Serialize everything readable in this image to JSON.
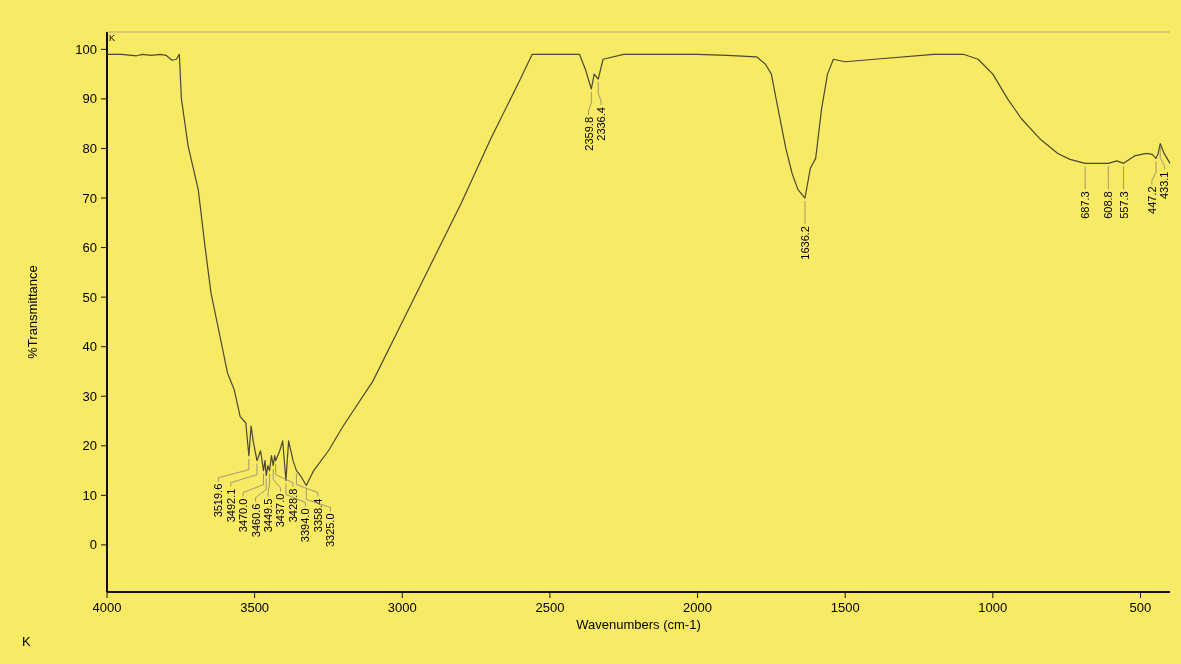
{
  "chart_data": {
    "type": "line",
    "xlabel": "Wavenumbers (cm-1)",
    "ylabel": "%Transmittance",
    "xlim": [
      4000,
      400
    ],
    "ylim": [
      -9.5,
      103.5
    ],
    "xticks": [
      4000,
      3500,
      3000,
      2500,
      2000,
      1500,
      1000,
      500
    ],
    "yticks": [
      0,
      10,
      20,
      30,
      40,
      50,
      60,
      70,
      80,
      90,
      100
    ],
    "grid": false,
    "marker": "none",
    "line_style": "solid",
    "series": [
      {
        "color": "#4a4832",
        "x": [
          4000,
          3950,
          3900,
          3880,
          3850,
          3820,
          3800,
          3780,
          3765,
          3755,
          3748,
          3725,
          3691,
          3668,
          3648,
          3615,
          3592,
          3569,
          3549,
          3530,
          3519.6,
          3512,
          3505,
          3492.1,
          3480,
          3470,
          3465,
          3460.6,
          3455,
          3449.5,
          3443,
          3437,
          3432,
          3428.8,
          3415,
          3405,
          3394,
          3385,
          3370,
          3358.4,
          3345,
          3325,
          3300,
          3250,
          3200,
          3100,
          3000,
          2900,
          2800,
          2700,
          2600,
          2560,
          2500,
          2400,
          2380,
          2359.8,
          2350,
          2336.4,
          2320,
          2250,
          2000,
          1900,
          1800,
          1770,
          1750,
          1734,
          1701,
          1680,
          1660,
          1636.2,
          1618,
          1600,
          1580,
          1560,
          1540,
          1500,
          1400,
          1200,
          1100,
          1050,
          1000,
          950,
          903,
          838,
          780,
          739,
          687.3,
          650,
          608.8,
          580,
          557.3,
          520,
          480,
          460,
          447.2,
          440,
          433.1,
          420,
          400
        ],
        "values": [
          99,
          99,
          98.7,
          99,
          98.8,
          99,
          98.8,
          97.8,
          98,
          99,
          90,
          80.4,
          71.7,
          60.2,
          50.9,
          41.4,
          34.7,
          31.3,
          25.9,
          24.6,
          18,
          24,
          21,
          17,
          19,
          15,
          17,
          14,
          16,
          15,
          18,
          16,
          18,
          17,
          19,
          21,
          13,
          21,
          17,
          15,
          14,
          12,
          15,
          19,
          24,
          33,
          45,
          57,
          69,
          82,
          94,
          99,
          99,
          99,
          96,
          92,
          95,
          94,
          98,
          99,
          99,
          98.8,
          98.5,
          97,
          95,
          90,
          80,
          75,
          71.7,
          70,
          76,
          78,
          88,
          95,
          98,
          97.5,
          98,
          99,
          99,
          98,
          95,
          90,
          86,
          81.8,
          79,
          77.8,
          77,
          77,
          77,
          77.5,
          77,
          78.5,
          79,
          78.8,
          78,
          79,
          81,
          79,
          77
        ]
      }
    ],
    "annotations": [
      {
        "text": "3519.6",
        "x": 3519.6,
        "y": 18
      },
      {
        "text": "3492.1",
        "x": 3492.1,
        "y": 17
      },
      {
        "text": "3470.0",
        "x": 3470,
        "y": 15
      },
      {
        "text": "3460.6",
        "x": 3460.6,
        "y": 14
      },
      {
        "text": "3449.5",
        "x": 3449.5,
        "y": 15
      },
      {
        "text": "3437.0",
        "x": 3437,
        "y": 16
      },
      {
        "text": "3428.8",
        "x": 3428.8,
        "y": 17
      },
      {
        "text": "3394.0",
        "x": 3394,
        "y": 13
      },
      {
        "text": "3358.4",
        "x": 3358.4,
        "y": 15
      },
      {
        "text": "3325.0",
        "x": 3325,
        "y": 12
      },
      {
        "text": "2359.8",
        "x": 2359.8,
        "y": 92
      },
      {
        "text": "2336.4",
        "x": 2336.4,
        "y": 94
      },
      {
        "text": "1636.2",
        "x": 1636.2,
        "y": 70
      },
      {
        "text": "687.3",
        "x": 687.3,
        "y": 77
      },
      {
        "text": "608.8",
        "x": 608.8,
        "y": 77
      },
      {
        "text": "557.3",
        "x": 557.3,
        "y": 77
      },
      {
        "text": "447.2",
        "x": 447.2,
        "y": 78
      },
      {
        "text": "433.1",
        "x": 433.1,
        "y": 81
      },
      "K",
      "K"
    ]
  }
}
